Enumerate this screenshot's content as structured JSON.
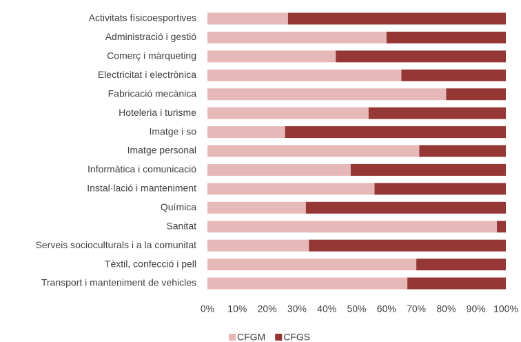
{
  "chart_data": {
    "type": "stacked-bar-horizontal",
    "categories": [
      "Activitats físicoesportives",
      "Administració i gestió",
      "Comerç i màrqueting",
      "Electricitat i electrònica",
      "Fabricació mecànica",
      "Hoteleria i turisme",
      "Imatge i so",
      "Imatge personal",
      "Informàtica i comunicació",
      "Instal·lació i manteniment",
      "Química",
      "Sanitat",
      "Serveis socioculturals i a la comunitat",
      "Tèxtil, confecció i pell",
      "Transport i manteniment de vehicles"
    ],
    "series": [
      {
        "name": "CFGM",
        "color": "#e6b9b8",
        "values": [
          27,
          60,
          43,
          65,
          80,
          54,
          26,
          71,
          48,
          56,
          33,
          97,
          34,
          70,
          67
        ]
      },
      {
        "name": "CFGS",
        "color": "#953735",
        "values": [
          73,
          40,
          57,
          35,
          20,
          46,
          74,
          29,
          52,
          44,
          67,
          3,
          66,
          30,
          33
        ]
      }
    ],
    "xlim": [
      0,
      100
    ],
    "xticks": [
      {
        "value": 0,
        "label": "0%"
      },
      {
        "value": 10,
        "label": "10%"
      },
      {
        "value": 20,
        "label": "20%"
      },
      {
        "value": 30,
        "label": "30%"
      },
      {
        "value": 40,
        "label": "40%"
      },
      {
        "value": 50,
        "label": "50%"
      },
      {
        "value": 60,
        "label": "60%"
      },
      {
        "value": 70,
        "label": "70%"
      },
      {
        "value": 80,
        "label": "80%"
      },
      {
        "value": 90,
        "label": "90%"
      },
      {
        "value": 100,
        "label": "100%"
      }
    ],
    "grid": false,
    "legend": "bottom"
  }
}
